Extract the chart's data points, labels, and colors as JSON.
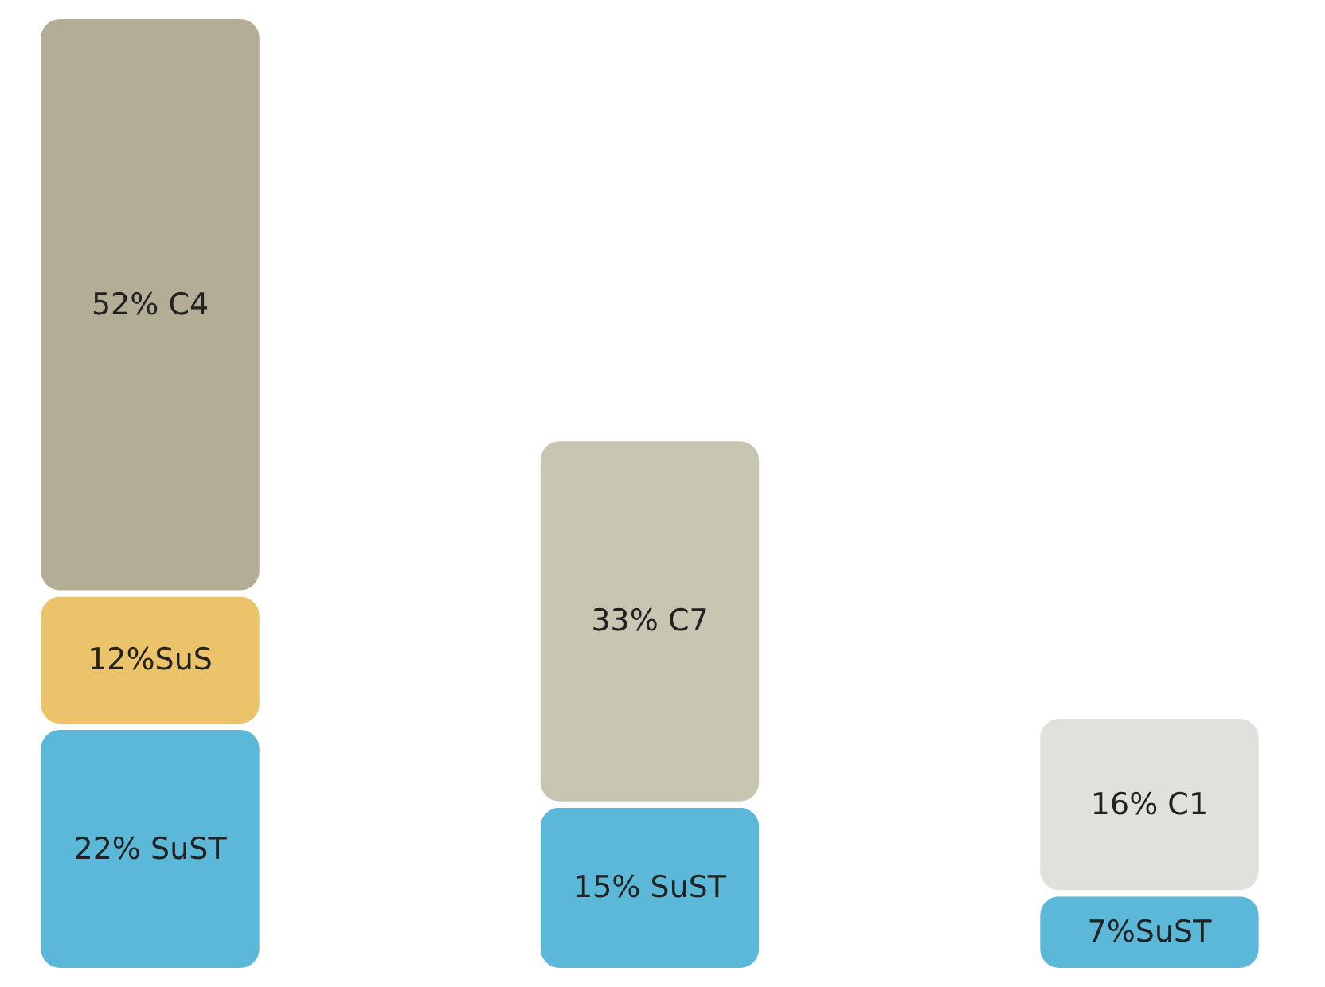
{
  "chart_data": {
    "type": "bar",
    "stacked": true,
    "tick_labels": false,
    "categories": [
      null,
      null,
      null
    ],
    "series": [
      {
        "colors": [
          "#5bb8d9",
          "#5bb8d9",
          "#5bb8d9"
        ],
        "values": [
          22,
          15,
          7
        ],
        "value_labels": [
          "22% SuST",
          "15% SuST",
          "7%SuST"
        ]
      },
      {
        "colors": [
          "#eac36a",
          null,
          null
        ],
        "values": [
          12,
          null,
          null
        ],
        "value_labels": [
          "12%SuS",
          null,
          null
        ]
      },
      {
        "colors": [
          "#b3ad96",
          "#c8c6b3",
          "#e0e0dc"
        ],
        "values": [
          52,
          33,
          16
        ],
        "value_labels": [
          "52% C4",
          "33% C7",
          "16% C1"
        ]
      }
    ]
  }
}
